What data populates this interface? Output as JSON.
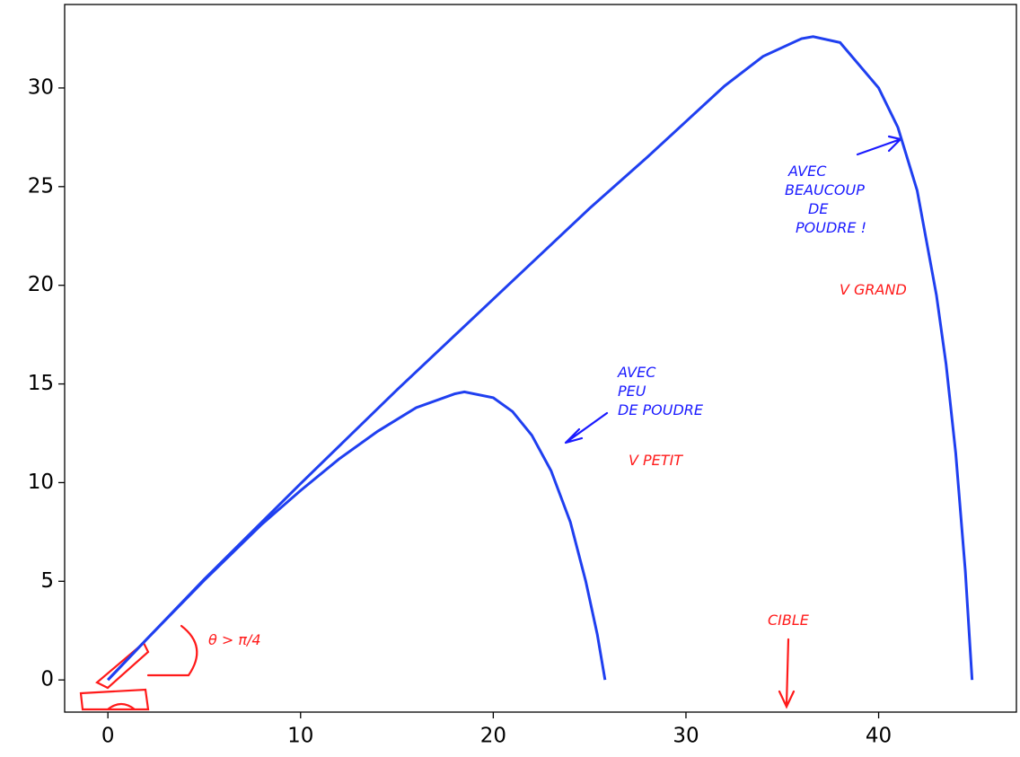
{
  "chart_data": {
    "type": "line",
    "series": [
      {
        "color": "#1f3ff0",
        "x": [
          0,
          2,
          5,
          8,
          10,
          12,
          14,
          16,
          18,
          18.5,
          20,
          21,
          22,
          23,
          24,
          24.8,
          25.4,
          25.8
        ],
        "values": [
          0,
          2.05,
          5.05,
          7.9,
          9.6,
          11.2,
          12.6,
          13.8,
          14.5,
          14.6,
          14.3,
          13.6,
          12.4,
          10.6,
          8.0,
          5.0,
          2.3,
          0
        ]
      },
      {
        "color": "#1f3ff0",
        "x": [
          0,
          2,
          5,
          10,
          15,
          20,
          25,
          28,
          30,
          32,
          34,
          36,
          36.6,
          38,
          40,
          41,
          42,
          43,
          43.5,
          44,
          44.5,
          44.85
        ],
        "values": [
          0,
          2.05,
          5.1,
          9.95,
          14.7,
          19.3,
          23.9,
          26.5,
          28.3,
          30.1,
          31.6,
          32.5,
          32.6,
          32.3,
          30.0,
          28.0,
          24.8,
          19.5,
          16.0,
          11.5,
          5.5,
          0
        ]
      }
    ],
    "xlim": [
      -2.245,
      47.15
    ],
    "ylim": [
      -1.63,
      34.23
    ],
    "xticks": [
      0,
      10,
      20,
      30,
      40
    ],
    "yticks": [
      0,
      5,
      10,
      15,
      20,
      25,
      30
    ],
    "annotations": [
      {
        "lines": [
          "AVEC",
          "PEU",
          "DE POUDRE"
        ],
        "color": "#1a1aff"
      },
      {
        "lines": [
          "V PETIT"
        ],
        "color": "#ff1a1a"
      },
      {
        "lines": [
          "AVEC",
          "BEAUCOUP",
          "DE",
          "POUDRE !"
        ],
        "color": "#1a1aff"
      },
      {
        "lines": [
          "V GRAND"
        ],
        "color": "#ff1a1a"
      },
      {
        "lines": [
          "CIBLE"
        ],
        "color": "#ff1a1a"
      },
      {
        "lines": [
          "θ > π/4"
        ],
        "color": "#ff1a1a"
      }
    ]
  }
}
